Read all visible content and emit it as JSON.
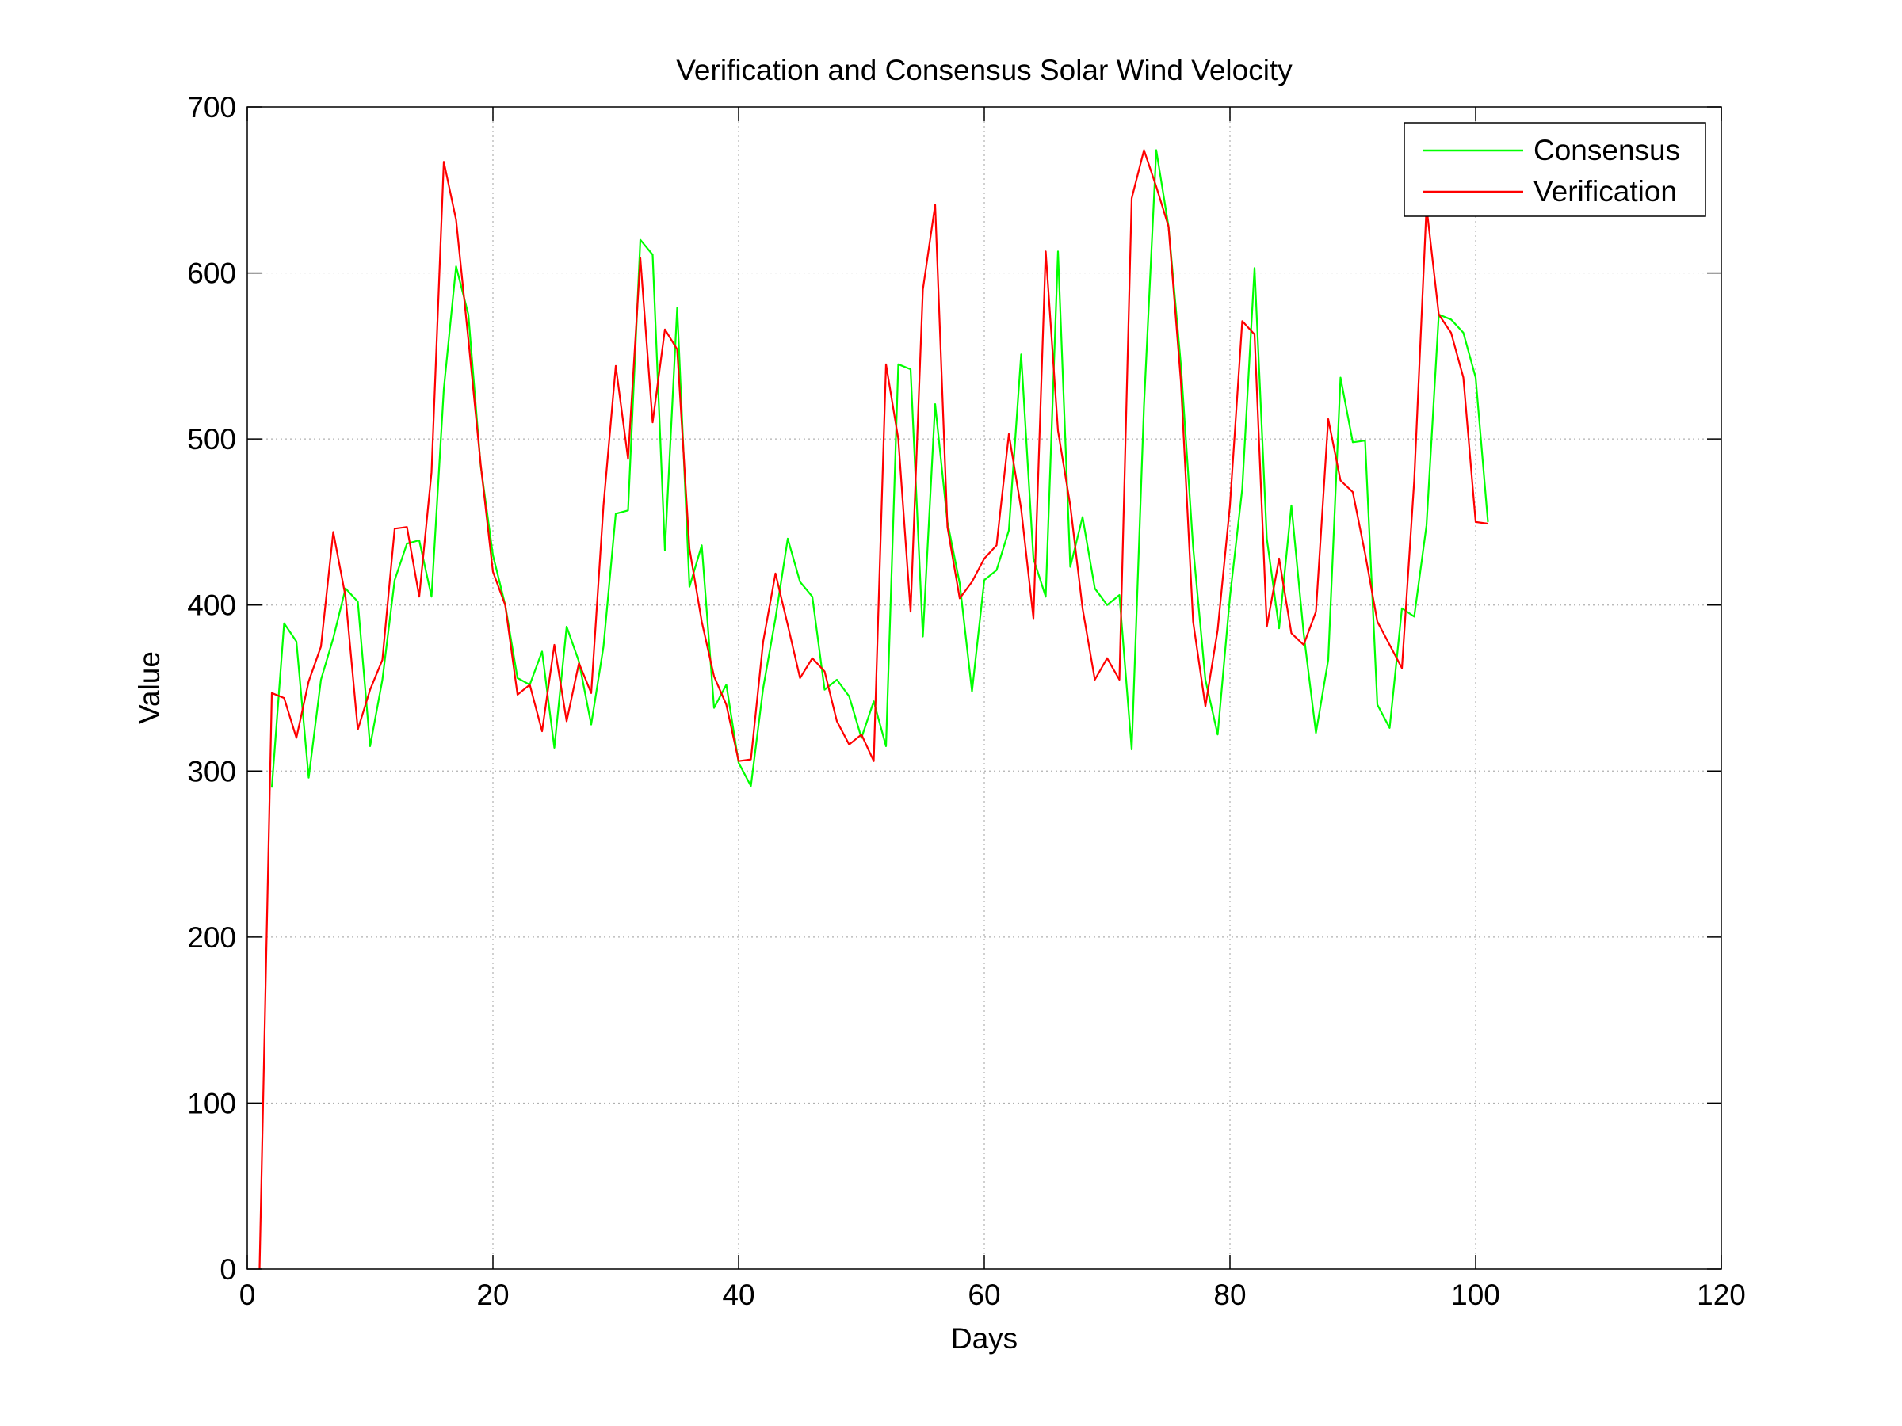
{
  "chart_data": {
    "type": "line",
    "title": "Verification and Consensus  Solar Wind Velocity",
    "xlabel": "Days",
    "ylabel": "Value",
    "xlim": [
      0,
      120
    ],
    "ylim": [
      0,
      700
    ],
    "xticks": [
      0,
      20,
      40,
      60,
      80,
      100,
      120
    ],
    "yticks": [
      0,
      100,
      200,
      300,
      400,
      500,
      600,
      700
    ],
    "xtick_labels": [
      "0",
      "20",
      "40",
      "60",
      "80",
      "100",
      "120"
    ],
    "ytick_labels": [
      "0",
      "100",
      "200",
      "300",
      "400",
      "500",
      "600",
      "700"
    ],
    "grid": true,
    "legend_position": "top-right",
    "series": [
      {
        "name": "Consensus",
        "color": "#00ff00",
        "x": [
          2,
          3,
          4,
          5,
          6,
          7,
          8,
          9,
          10,
          11,
          12,
          13,
          14,
          15,
          16,
          17,
          18,
          19,
          20,
          21,
          22,
          23,
          24,
          25,
          26,
          27,
          28,
          29,
          30,
          31,
          32,
          33,
          34,
          35,
          36,
          37,
          38,
          39,
          40,
          41,
          42,
          43,
          44,
          45,
          46,
          47,
          48,
          49,
          50,
          51,
          52,
          53,
          54,
          55,
          56,
          57,
          58,
          59,
          60,
          61,
          62,
          63,
          64,
          65,
          66,
          67,
          68,
          69,
          70,
          71,
          72,
          73,
          74,
          75,
          76,
          77,
          78,
          79,
          80,
          81,
          82,
          83,
          84,
          85,
          86,
          87,
          88,
          89,
          90,
          91,
          92,
          93,
          94,
          95,
          96,
          97,
          98,
          99,
          100,
          101
        ],
        "values": [
          290,
          389,
          378,
          296,
          355,
          380,
          410,
          402,
          315,
          355,
          415,
          437,
          439,
          405,
          530,
          604,
          575,
          484,
          430,
          400,
          356,
          352,
          372,
          314,
          387,
          366,
          328,
          375,
          455,
          457,
          620,
          611,
          433,
          579,
          411,
          436,
          338,
          352,
          305,
          291,
          350,
          392,
          440,
          414,
          405,
          349,
          355,
          345,
          320,
          342,
          315,
          545,
          542,
          381,
          521,
          450,
          413,
          348,
          415,
          421,
          445,
          551,
          428,
          405,
          613,
          423,
          453,
          410,
          400,
          406,
          313,
          520,
          674,
          628,
          545,
          435,
          355,
          322,
          405,
          470,
          603,
          440,
          386,
          460,
          383,
          323,
          367,
          537,
          498,
          499,
          340,
          326,
          398,
          393,
          448,
          575,
          572,
          564,
          537,
          450
        ]
      },
      {
        "name": "Verification",
        "color": "#ff0000",
        "x": [
          1,
          2,
          3,
          4,
          5,
          6,
          7,
          8,
          9,
          10,
          11,
          12,
          13,
          14,
          15,
          16,
          17,
          18,
          19,
          20,
          21,
          22,
          23,
          24,
          25,
          26,
          27,
          28,
          29,
          30,
          31,
          32,
          33,
          34,
          35,
          36,
          37,
          38,
          39,
          40,
          41,
          42,
          43,
          44,
          45,
          46,
          47,
          48,
          49,
          50,
          51,
          52,
          53,
          54,
          55,
          56,
          57,
          58,
          59,
          60,
          61,
          62,
          63,
          64,
          65,
          66,
          67,
          68,
          69,
          70,
          71,
          72,
          73,
          74,
          75,
          76,
          77,
          78,
          79,
          80,
          81,
          82,
          83,
          84,
          85,
          86,
          87,
          88,
          89,
          90,
          91,
          92,
          93,
          94,
          95,
          96,
          97,
          98,
          99,
          100,
          101
        ],
        "values": [
          0,
          347,
          344,
          320,
          354,
          375,
          444,
          405,
          325,
          349,
          367,
          446,
          447,
          405,
          480,
          667,
          632,
          560,
          485,
          420,
          400,
          346,
          352,
          324,
          376,
          330,
          365,
          347,
          460,
          544,
          488,
          609,
          510,
          566,
          554,
          434,
          390,
          357,
          340,
          306,
          307,
          378,
          419,
          388,
          356,
          368,
          360,
          330,
          316,
          322,
          306,
          545,
          500,
          396,
          590,
          641,
          447,
          404,
          414,
          428,
          436,
          503,
          458,
          392,
          613,
          505,
          460,
          398,
          355,
          368,
          355,
          645,
          674,
          652,
          628,
          535,
          390,
          339,
          385,
          460,
          571,
          563,
          387,
          428,
          383,
          376,
          396,
          512,
          475,
          468,
          431,
          390,
          376,
          362,
          475,
          640,
          575,
          564,
          537,
          450,
          449
        ]
      }
    ]
  }
}
